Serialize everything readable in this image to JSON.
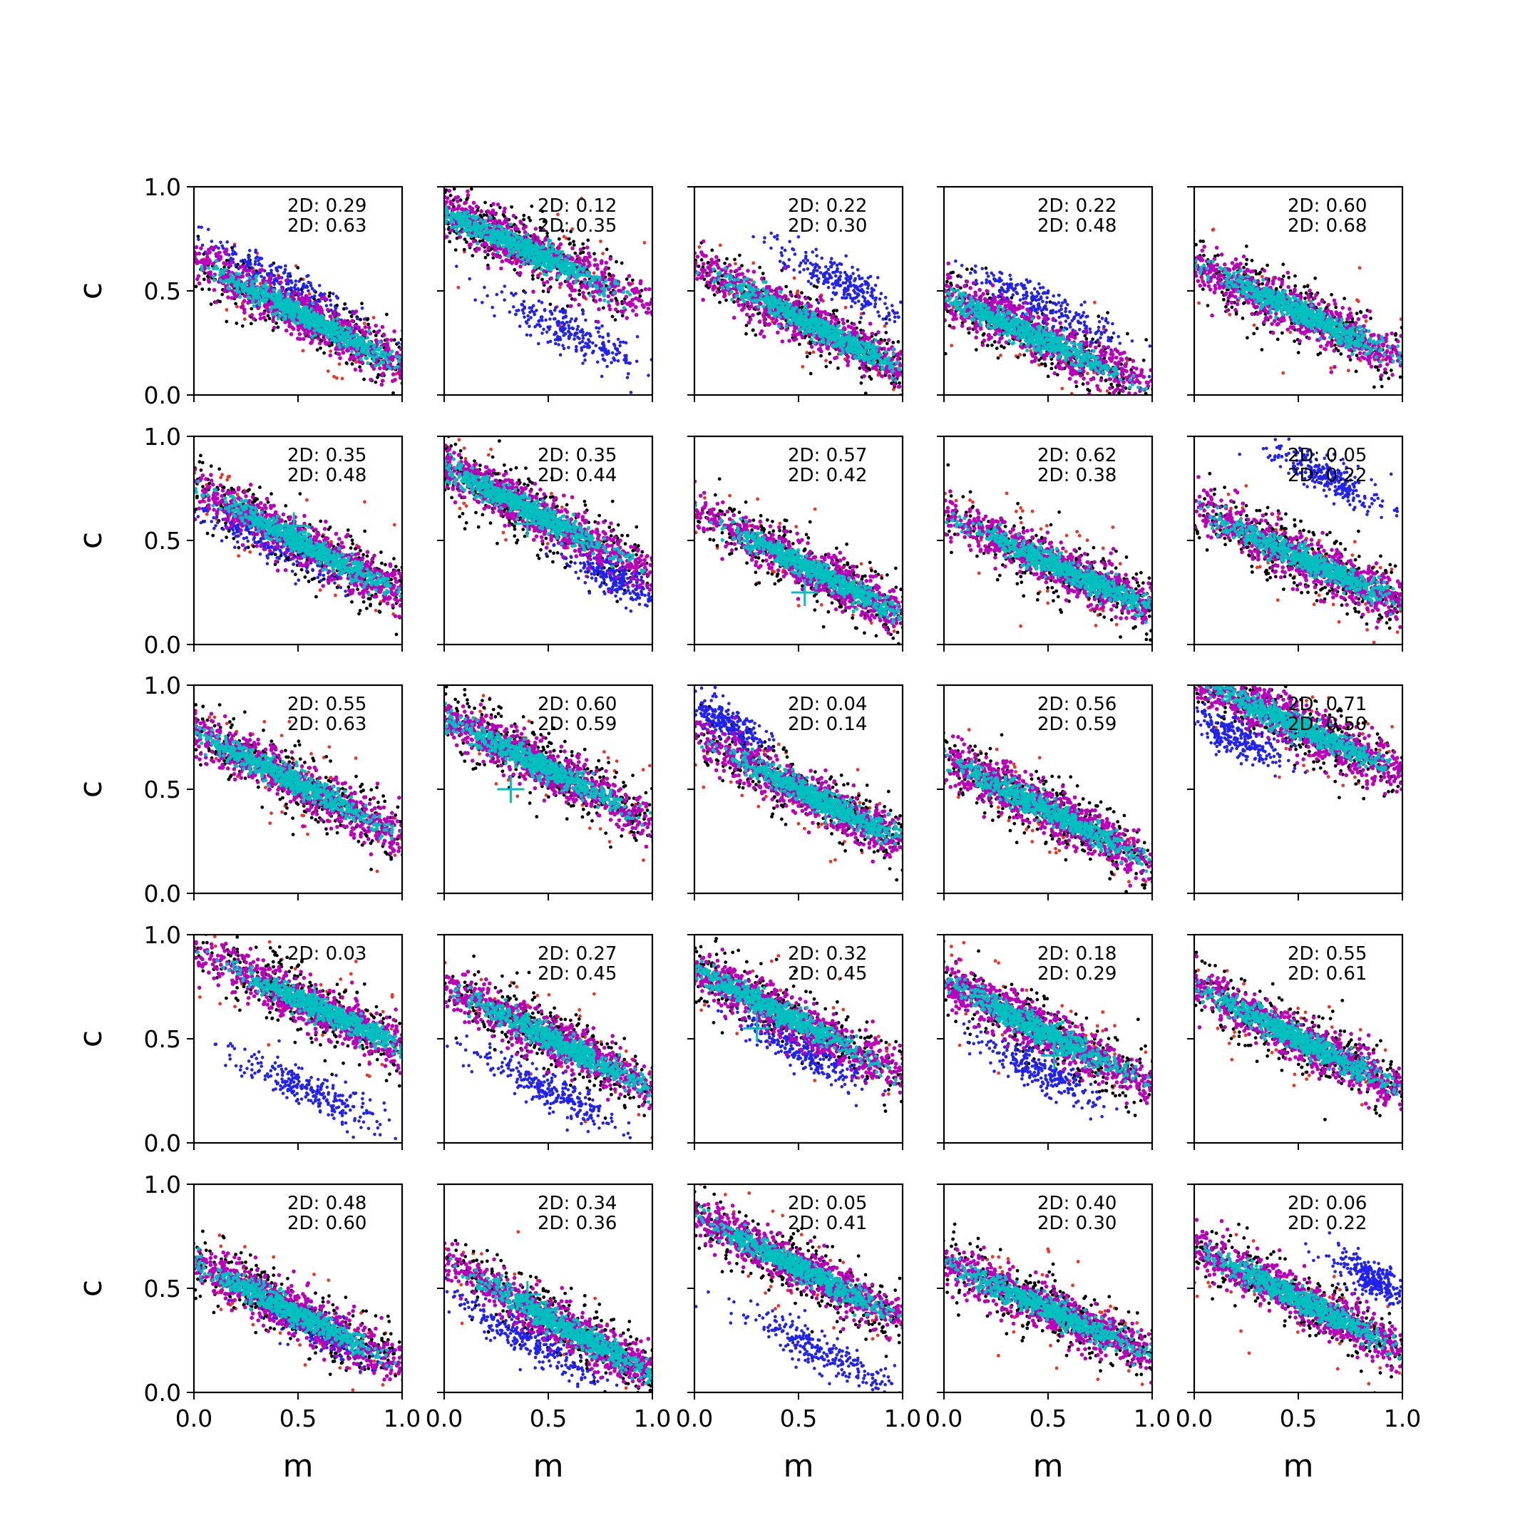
{
  "chart_data": {
    "type": "scatter",
    "grid_rows": 5,
    "grid_cols": 5,
    "xlabel": "m",
    "ylabel": "c",
    "xlim": [
      0.0,
      1.0
    ],
    "ylim": [
      0.0,
      1.0
    ],
    "xticks": [
      "0.0",
      "0.5",
      "1.0"
    ],
    "yticks": [
      "0.0",
      "0.5",
      "1.0"
    ],
    "grid": false,
    "colors": {
      "red": "#ee3322",
      "black": "#000000",
      "blue": "#2222ee",
      "magenta": "#bb00bb",
      "cyan": "#00bfbf",
      "marker": "#00bfbf"
    },
    "panels": [
      {
        "annotations": [
          "2D: 0.29",
          "2D: 0.63"
        ],
        "center": [
          0.55,
          0.37
        ],
        "slope": -0.5,
        "blue": {
          "center": [
            0.4,
            0.55
          ],
          "spread": 0.2
        },
        "marker": null
      },
      {
        "annotations": [
          "2D: 0.12",
          "2D: 0.35"
        ],
        "center": [
          0.35,
          0.72
        ],
        "slope": -0.45,
        "blue": {
          "center": [
            0.6,
            0.3
          ],
          "spread": 0.18
        },
        "marker": [
          0.5,
          0.69
        ]
      },
      {
        "annotations": [
          "2D: 0.22",
          "2D: 0.30"
        ],
        "center": [
          0.6,
          0.32
        ],
        "slope": -0.5,
        "blue": {
          "center": [
            0.7,
            0.55
          ],
          "spread": 0.15
        },
        "marker": null
      },
      {
        "annotations": [
          "2D: 0.22",
          "2D: 0.48"
        ],
        "center": [
          0.4,
          0.3
        ],
        "slope": -0.45,
        "blue": {
          "center": [
            0.5,
            0.42
          ],
          "spread": 0.2
        },
        "marker": null
      },
      {
        "annotations": [
          "2D: 0.60",
          "2D: 0.68"
        ],
        "center": [
          0.5,
          0.4
        ],
        "slope": -0.45,
        "blue": null,
        "marker": null
      },
      {
        "annotations": [
          "2D: 0.35",
          "2D: 0.48"
        ],
        "center": [
          0.55,
          0.47
        ],
        "slope": -0.5,
        "blue": {
          "center": [
            0.35,
            0.5
          ],
          "spread": 0.18
        },
        "marker": [
          0.48,
          0.57
        ]
      },
      {
        "annotations": [
          "2D: 0.35",
          "2D: 0.44"
        ],
        "center": [
          0.4,
          0.65
        ],
        "slope": -0.5,
        "blue": {
          "center": [
            0.8,
            0.33
          ],
          "spread": 0.12
        },
        "marker": [
          0.4,
          0.58
        ]
      },
      {
        "annotations": [
          "2D: 0.57",
          "2D: 0.42"
        ],
        "center": [
          0.6,
          0.34
        ],
        "slope": -0.5,
        "blue": null,
        "marker": [
          0.53,
          0.25
        ]
      },
      {
        "annotations": [
          "2D: 0.62",
          "2D: 0.38"
        ],
        "center": [
          0.6,
          0.35
        ],
        "slope": -0.45,
        "blue": null,
        "marker": [
          0.55,
          0.38
        ]
      },
      {
        "annotations": [
          "2D: 0.05",
          "2D: 0.22"
        ],
        "center": [
          0.55,
          0.4
        ],
        "slope": -0.45,
        "blue": {
          "center": [
            0.65,
            0.8
          ],
          "spread": 0.15
        },
        "marker": null
      },
      {
        "annotations": [
          "2D: 0.55",
          "2D: 0.63"
        ],
        "center": [
          0.45,
          0.55
        ],
        "slope": -0.5,
        "blue": null,
        "marker": null
      },
      {
        "annotations": [
          "2D: 0.60",
          "2D: 0.59"
        ],
        "center": [
          0.45,
          0.62
        ],
        "slope": -0.5,
        "blue": null,
        "marker": [
          0.32,
          0.5
        ]
      },
      {
        "annotations": [
          "2D: 0.04",
          "2D: 0.14"
        ],
        "center": [
          0.6,
          0.45
        ],
        "slope": -0.5,
        "blue": {
          "center": [
            0.15,
            0.82
          ],
          "spread": 0.1
        },
        "marker": [
          0.63,
          0.39
        ]
      },
      {
        "annotations": [
          "2D: 0.56",
          "2D: 0.59"
        ],
        "center": [
          0.5,
          0.4
        ],
        "slope": -0.5,
        "blue": null,
        "marker": null
      },
      {
        "annotations": [
          "2D: 0.71",
          "2D: 0.50"
        ],
        "center": [
          0.5,
          0.8
        ],
        "slope": -0.45,
        "blue": {
          "center": [
            0.2,
            0.75
          ],
          "spread": 0.12
        },
        "marker": null
      },
      {
        "annotations": [
          "2D: 0.03",
          ""
        ],
        "center": [
          0.65,
          0.62
        ],
        "slope": -0.45,
        "blue": {
          "center": [
            0.55,
            0.25
          ],
          "spread": 0.18
        },
        "marker": [
          0.58,
          0.69
        ]
      },
      {
        "annotations": [
          "2D: 0.27",
          "2D: 0.45"
        ],
        "center": [
          0.55,
          0.48
        ],
        "slope": -0.5,
        "blue": {
          "center": [
            0.5,
            0.25
          ],
          "spread": 0.18
        },
        "marker": null
      },
      {
        "annotations": [
          "2D: 0.32",
          "2D: 0.45"
        ],
        "center": [
          0.4,
          0.63
        ],
        "slope": -0.5,
        "blue": {
          "center": [
            0.5,
            0.45
          ],
          "spread": 0.15
        },
        "marker": [
          0.3,
          0.55
        ]
      },
      {
        "annotations": [
          "2D: 0.18",
          "2D: 0.29"
        ],
        "center": [
          0.45,
          0.55
        ],
        "slope": -0.5,
        "blue": {
          "center": [
            0.45,
            0.35
          ],
          "spread": 0.15
        },
        "marker": [
          0.53,
          0.42
        ]
      },
      {
        "annotations": [
          "2D: 0.55",
          "2D: 0.61"
        ],
        "center": [
          0.5,
          0.5
        ],
        "slope": -0.5,
        "blue": null,
        "marker": null
      },
      {
        "annotations": [
          "2D: 0.48",
          "2D: 0.60"
        ],
        "center": [
          0.45,
          0.4
        ],
        "slope": -0.5,
        "blue": {
          "center": [
            0.6,
            0.3
          ],
          "spread": 0.15
        },
        "marker": [
          0.48,
          0.37
        ]
      },
      {
        "annotations": [
          "2D: 0.34",
          "2D: 0.36"
        ],
        "center": [
          0.6,
          0.3
        ],
        "slope": -0.55,
        "blue": {
          "center": [
            0.4,
            0.25
          ],
          "spread": 0.18
        },
        "marker": [
          0.4,
          0.47
        ]
      },
      {
        "annotations": [
          "2D: 0.05",
          "2D: 0.41"
        ],
        "center": [
          0.5,
          0.6
        ],
        "slope": -0.5,
        "blue": {
          "center": [
            0.6,
            0.2
          ],
          "spread": 0.18
        },
        "marker": null
      },
      {
        "annotations": [
          "2D: 0.40",
          "2D: 0.30"
        ],
        "center": [
          0.5,
          0.4
        ],
        "slope": -0.45,
        "blue": null,
        "marker": null
      },
      {
        "annotations": [
          "2D: 0.06",
          "2D: 0.22"
        ],
        "center": [
          0.5,
          0.45
        ],
        "slope": -0.5,
        "blue": {
          "center": [
            0.85,
            0.55
          ],
          "spread": 0.1
        },
        "marker": null
      }
    ]
  }
}
